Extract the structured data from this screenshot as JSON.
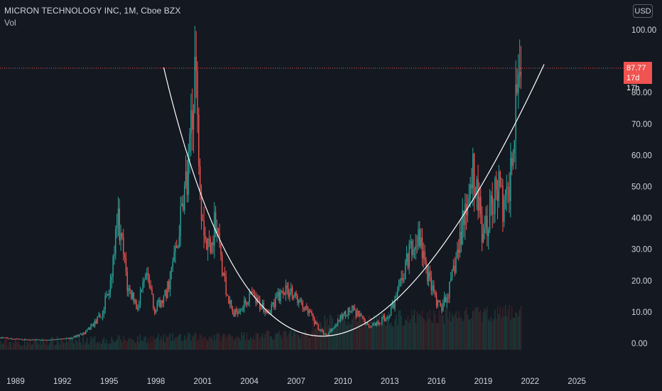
{
  "header": {
    "title": "MICRON TECHNOLOGY INC, 1M, Cboe BZX",
    "indicator": "Vol",
    "currency": "USD"
  },
  "price_tag": {
    "price": "87.77",
    "countdown": "17d 17h",
    "color": "#f05350"
  },
  "colors": {
    "background": "#141821",
    "up": "#26a69a",
    "down": "#ef5350",
    "curve": "#ffffff"
  },
  "chart_data": {
    "type": "candlestick",
    "title": "MICRON TECHNOLOGY INC, 1M, Cboe BZX",
    "y_axis": {
      "side": "right",
      "range": [
        0,
        100
      ],
      "ticks": [
        "100.00",
        "90.00",
        "80.00",
        "70.00",
        "60.00",
        "50.00",
        "40.00",
        "30.00",
        "20.00",
        "10.00",
        "0.00"
      ]
    },
    "x_axis": {
      "range": [
        1988,
        2027
      ],
      "ticks": [
        "1989",
        "1992",
        "1995",
        "1998",
        "2001",
        "2004",
        "2007",
        "2010",
        "2013",
        "2016",
        "2019",
        "2022",
        "2025"
      ]
    },
    "last_price": 87.77,
    "price_path": [
      [
        1988.0,
        1.8
      ],
      [
        1989.5,
        1.2
      ],
      [
        1991.0,
        1.0
      ],
      [
        1992.5,
        1.6
      ],
      [
        1993.5,
        3.5
      ],
      [
        1994.5,
        9
      ],
      [
        1995.0,
        18
      ],
      [
        1995.6,
        39
      ],
      [
        1996.2,
        17
      ],
      [
        1996.8,
        12
      ],
      [
        1997.4,
        21
      ],
      [
        1997.9,
        11
      ],
      [
        1998.5,
        14
      ],
      [
        1999.0,
        22
      ],
      [
        1999.6,
        40
      ],
      [
        2000.1,
        55
      ],
      [
        2000.5,
        88
      ],
      [
        2000.9,
        45
      ],
      [
        2001.3,
        30
      ],
      [
        2001.8,
        38
      ],
      [
        2002.3,
        22
      ],
      [
        2002.9,
        9
      ],
      [
        2003.5,
        12
      ],
      [
        2004.1,
        15
      ],
      [
        2004.7,
        12
      ],
      [
        2005.3,
        10
      ],
      [
        2006.0,
        16
      ],
      [
        2006.6,
        17
      ],
      [
        2007.2,
        13
      ],
      [
        2007.8,
        10
      ],
      [
        2008.4,
        5
      ],
      [
        2008.9,
        2.5
      ],
      [
        2009.5,
        6
      ],
      [
        2010.0,
        9
      ],
      [
        2010.5,
        11
      ],
      [
        2011.0,
        9
      ],
      [
        2011.6,
        5.5
      ],
      [
        2012.2,
        6.5
      ],
      [
        2012.8,
        8.5
      ],
      [
        2013.4,
        14
      ],
      [
        2013.9,
        22
      ],
      [
        2014.5,
        34
      ],
      [
        2014.9,
        33
      ],
      [
        2015.4,
        22
      ],
      [
        2015.9,
        14
      ],
      [
        2016.3,
        11
      ],
      [
        2016.8,
        17
      ],
      [
        2017.3,
        27
      ],
      [
        2017.8,
        42
      ],
      [
        2018.3,
        57
      ],
      [
        2018.7,
        45
      ],
      [
        2019.0,
        33
      ],
      [
        2019.5,
        44
      ],
      [
        2019.9,
        52
      ],
      [
        2020.3,
        42
      ],
      [
        2020.7,
        50
      ],
      [
        2021.1,
        80
      ],
      [
        2021.3,
        94
      ],
      [
        2021.45,
        87.77
      ]
    ],
    "annotations": [
      {
        "type": "parabolic-curve",
        "points": [
          [
            1998.5,
            88
          ],
          [
            2008.7,
            2.3
          ],
          [
            2022.9,
            89
          ]
        ]
      },
      {
        "type": "horizontal-dotted-line",
        "y": 87.77
      }
    ],
    "volume_visible": true
  }
}
